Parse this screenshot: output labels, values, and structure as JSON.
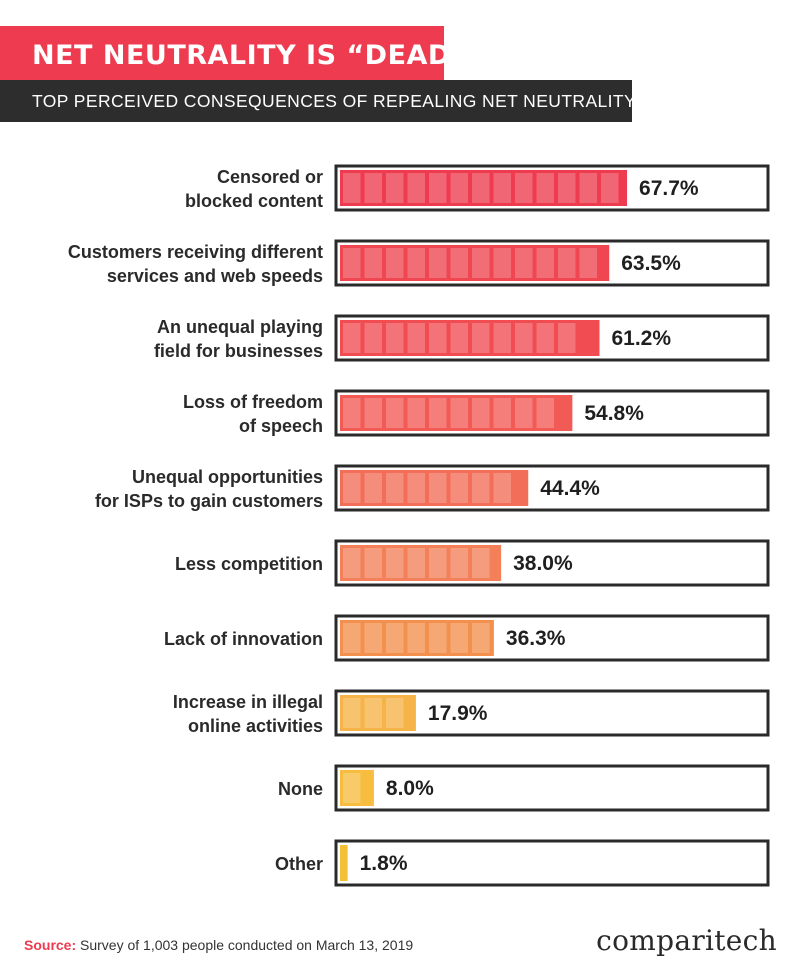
{
  "header": {
    "title": "NET NEUTRALITY IS “DEAD”",
    "subtitle": "TOP PERCEIVED CONSEQUENCES OF REPEALING NET NEUTRALITY"
  },
  "chart_data": {
    "type": "bar",
    "orientation": "horizontal",
    "title": "NET NEUTRALITY IS “DEAD”",
    "subtitle": "TOP PERCEIVED CONSEQUENCES OF REPEALING NET NEUTRALITY",
    "categories": [
      [
        "Censored or",
        "blocked content"
      ],
      [
        "Customers receiving different",
        "services and web speeds"
      ],
      [
        "An unequal playing",
        "field for businesses"
      ],
      [
        "Loss of freedom",
        "of speech"
      ],
      [
        "Unequal opportunities",
        "for ISPs to gain customers"
      ],
      [
        "Less competition"
      ],
      [
        "Lack of innovation"
      ],
      [
        "Increase in illegal",
        "online activities"
      ],
      [
        "None"
      ],
      [
        "Other"
      ]
    ],
    "values": [
      67.7,
      63.5,
      61.2,
      54.8,
      44.4,
      38.0,
      36.3,
      17.9,
      8.0,
      1.8
    ],
    "value_labels": [
      "67.7%",
      "63.5%",
      "61.2%",
      "54.8%",
      "44.4%",
      "38.0%",
      "36.3%",
      "17.9%",
      "8.0%",
      "1.8%"
    ],
    "xlim": [
      0,
      100
    ],
    "colors": [
      "#ee3b4f",
      "#ef4651",
      "#f04c52",
      "#f25a55",
      "#f36e58",
      "#f4805a",
      "#f3904e",
      "#f6b347",
      "#f6bd3e",
      "#f4c036"
    ],
    "grid": false,
    "legend": "none"
  },
  "footer": {
    "source_label": "Source:",
    "source_text": " Survey of 1,003 people conducted on March 13, 2019",
    "brand": "comparitech"
  }
}
